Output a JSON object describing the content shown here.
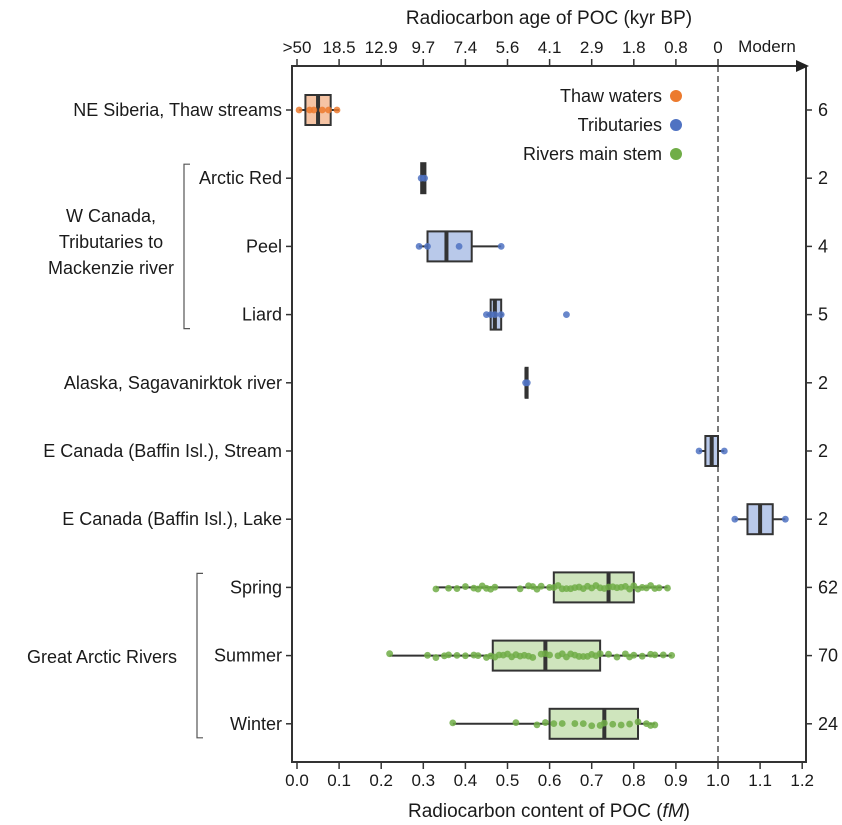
{
  "chart_data": {
    "type": "box",
    "xlabel_bottom_prefix": "Radiocarbon content of POC (",
    "xlabel_bottom_unit": "fM",
    "xlabel_bottom_suffix": ")",
    "xlabel_top": "Radiocarbon age of POC (kyr BP)",
    "xlim": [
      -0.01,
      1.2
    ],
    "x_ticks": [
      0.0,
      0.1,
      0.2,
      0.3,
      0.4,
      0.5,
      0.6,
      0.7,
      0.8,
      0.9,
      1.0,
      1.1,
      1.2
    ],
    "x_tick_labels": [
      "0.0",
      "0.1",
      "0.2",
      "0.3",
      "0.4",
      "0.5",
      "0.6",
      "0.7",
      "0.8",
      "0.9",
      "1.0",
      "1.1",
      "1.2"
    ],
    "top_ticks": [
      {
        "x": 0.0,
        "label": ">50"
      },
      {
        "x": 0.1,
        "label": "18.5"
      },
      {
        "x": 0.2,
        "label": "12.9"
      },
      {
        "x": 0.3,
        "label": "9.7"
      },
      {
        "x": 0.4,
        "label": "7.4"
      },
      {
        "x": 0.5,
        "label": "5.6"
      },
      {
        "x": 0.6,
        "label": "4.1"
      },
      {
        "x": 0.7,
        "label": "2.9"
      },
      {
        "x": 0.8,
        "label": "1.8"
      },
      {
        "x": 0.9,
        "label": "0.8"
      },
      {
        "x": 1.0,
        "label": "0"
      }
    ],
    "modern_label": "Modern",
    "reference_line_x": 1.0,
    "legend": [
      {
        "label": "Thaw waters",
        "color": "#ec7a2e"
      },
      {
        "label": "Tributaries",
        "color": "#4f72c2"
      },
      {
        "label": "Rivers main stem",
        "color": "#70ad47"
      }
    ],
    "legend_position": "top-right",
    "group_labels": [
      {
        "label_lines": [
          "W Canada,",
          "Tributaries to",
          "Mackenzie river"
        ],
        "rows": [
          1,
          3
        ]
      },
      {
        "label_lines": [
          "Great Arctic Rivers"
        ],
        "rows": [
          7,
          9
        ]
      }
    ],
    "categories": [
      {
        "label": "NE Siberia, Thaw streams",
        "n": "6",
        "group": "Thaw waters",
        "min": 0.005,
        "q1": 0.02,
        "median": 0.05,
        "q3": 0.08,
        "max": 0.1,
        "points": [
          0.005,
          0.03,
          0.04,
          0.06,
          0.075,
          0.095
        ]
      },
      {
        "label": "Arctic Red",
        "n": "2",
        "group": "Tributaries",
        "min": 0.295,
        "q1": 0.295,
        "median": 0.3,
        "q3": 0.305,
        "max": 0.305,
        "points": [
          0.295,
          0.303
        ]
      },
      {
        "label": "Peel",
        "n": "4",
        "group": "Tributaries",
        "min": 0.29,
        "q1": 0.31,
        "median": 0.355,
        "q3": 0.415,
        "max": 0.485,
        "points": [
          0.29,
          0.31,
          0.385,
          0.485
        ]
      },
      {
        "label": "Liard",
        "n": "5",
        "group": "Tributaries",
        "min": 0.45,
        "q1": 0.46,
        "median": 0.47,
        "q3": 0.485,
        "max": 0.49,
        "points": [
          0.45,
          0.46,
          0.47,
          0.485,
          0.64
        ]
      },
      {
        "label": "Alaska, Sagavanirktok river",
        "n": "2",
        "group": "Tributaries",
        "min": 0.543,
        "q1": 0.543,
        "median": 0.545,
        "q3": 0.547,
        "max": 0.547,
        "points": [
          0.543,
          0.547
        ]
      },
      {
        "label": "E Canada (Baffin Isl.), Stream",
        "n": "2",
        "group": "Tributaries",
        "min": 0.955,
        "q1": 0.97,
        "median": 0.985,
        "q3": 1.0,
        "max": 1.015,
        "points": [
          0.955,
          1.015
        ]
      },
      {
        "label": "E Canada (Baffin Isl.), Lake",
        "n": "2",
        "group": "Tributaries",
        "min": 1.04,
        "q1": 1.07,
        "median": 1.1,
        "q3": 1.13,
        "max": 1.16,
        "points": [
          1.04,
          1.16
        ]
      },
      {
        "label": "Spring",
        "n": "62",
        "group": "Rivers main stem",
        "min": 0.33,
        "q1": 0.61,
        "median": 0.74,
        "q3": 0.8,
        "max": 0.88,
        "points": [
          0.33,
          0.36,
          0.38,
          0.4,
          0.42,
          0.43,
          0.44,
          0.45,
          0.46,
          0.47,
          0.53,
          0.55,
          0.56,
          0.57,
          0.58,
          0.6,
          0.61,
          0.62,
          0.63,
          0.64,
          0.65,
          0.66,
          0.67,
          0.68,
          0.69,
          0.7,
          0.71,
          0.72,
          0.73,
          0.74,
          0.75,
          0.76,
          0.77,
          0.78,
          0.79,
          0.8,
          0.81,
          0.82,
          0.83,
          0.84,
          0.85,
          0.86,
          0.88
        ]
      },
      {
        "label": "Summer",
        "n": "70",
        "group": "Rivers main stem",
        "min": 0.22,
        "q1": 0.465,
        "median": 0.59,
        "q3": 0.72,
        "max": 0.89,
        "points": [
          0.22,
          0.31,
          0.33,
          0.35,
          0.36,
          0.38,
          0.4,
          0.42,
          0.43,
          0.45,
          0.46,
          0.47,
          0.48,
          0.49,
          0.5,
          0.51,
          0.52,
          0.53,
          0.54,
          0.55,
          0.56,
          0.58,
          0.59,
          0.6,
          0.62,
          0.63,
          0.64,
          0.65,
          0.66,
          0.67,
          0.68,
          0.69,
          0.7,
          0.71,
          0.72,
          0.74,
          0.76,
          0.78,
          0.79,
          0.8,
          0.82,
          0.84,
          0.85,
          0.87,
          0.89
        ]
      },
      {
        "label": "Winter",
        "n": "24",
        "group": "Rivers main stem",
        "min": 0.37,
        "q1": 0.6,
        "median": 0.73,
        "q3": 0.81,
        "max": 0.85,
        "points": [
          0.37,
          0.52,
          0.57,
          0.59,
          0.61,
          0.63,
          0.66,
          0.68,
          0.7,
          0.72,
          0.73,
          0.75,
          0.77,
          0.79,
          0.81,
          0.83,
          0.84,
          0.85
        ]
      }
    ],
    "colors": {
      "Thaw waters": {
        "fill": "#f6c4a4",
        "point": "#ec7a2e"
      },
      "Tributaries": {
        "fill": "#b9c9ea",
        "point": "#4f72c2"
      },
      "Rivers main stem": {
        "fill": "#cfe5bd",
        "point": "#70ad47"
      }
    },
    "grid": false
  }
}
